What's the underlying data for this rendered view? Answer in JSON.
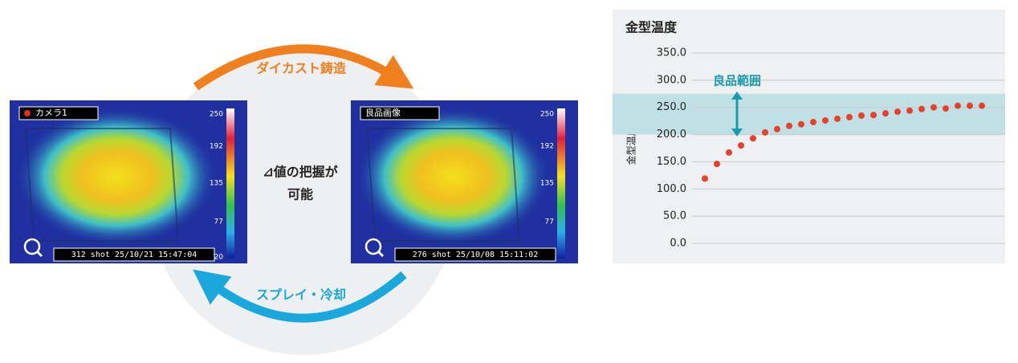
{
  "diagram": {
    "top_arrow": "ダイカスト鋳造",
    "bottom_arrow": "スプレイ・冷却",
    "center_text": [
      "⊿値の把握が",
      "可能"
    ],
    "panels": [
      {
        "label": "カメラ1",
        "scale": [
          250,
          192,
          135,
          77,
          20
        ],
        "footer": "312 shot 25/10/21 15:47:04"
      },
      {
        "label": "良品画像",
        "scale": [
          250,
          192,
          135,
          77,
          20
        ],
        "footer": "276 shot 25/10/08 15:11:02"
      }
    ]
  },
  "chart_data": {
    "type": "scatter",
    "title": "金型温度",
    "y_label": "金型温度(℃)",
    "annotation": "良品範囲",
    "band": [
      200,
      275
    ],
    "categories": [
      null,
      null,
      null,
      null,
      null,
      null,
      null,
      null,
      null,
      null,
      null,
      null,
      null,
      null,
      null,
      null,
      null,
      null,
      null,
      null,
      null,
      null,
      null,
      null
    ],
    "values": [
      119,
      146,
      167,
      180,
      193,
      204,
      210,
      216,
      219,
      223,
      226,
      229,
      232,
      235,
      236,
      239,
      242,
      244,
      247,
      250,
      248,
      253,
      253,
      253
    ],
    "color": "#e8412a",
    "ylim": [
      0,
      350
    ],
    "yticks": [
      {
        "value": 0,
        "label": "0.0"
      },
      {
        "value": 50,
        "label": "50.0"
      },
      {
        "value": 100,
        "label": "100.0"
      },
      {
        "value": 150,
        "label": "150.0"
      },
      {
        "value": 200,
        "label": "200.0"
      },
      {
        "value": 250,
        "label": "250.0"
      },
      {
        "value": 300,
        "label": "300.0"
      },
      {
        "value": 350,
        "label": "350.0"
      }
    ],
    "grid": true
  }
}
